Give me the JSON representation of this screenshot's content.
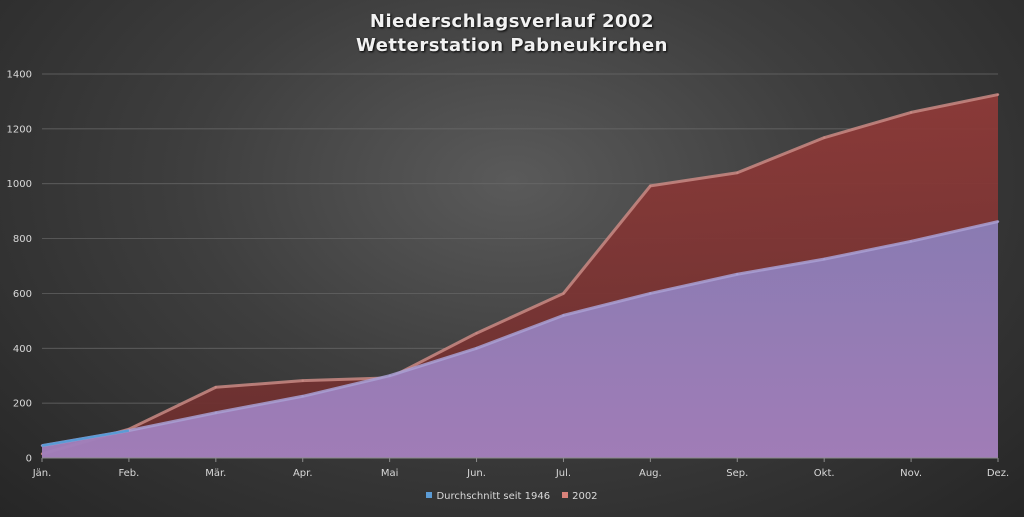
{
  "chart_data": {
    "type": "area",
    "title_lines": [
      "Niederschlagsverlauf 2002",
      "Wetterstation Pabneukirchen"
    ],
    "categories": [
      "Jän.",
      "Feb.",
      "Mär.",
      "Apr.",
      "Mai",
      "Jun.",
      "Jul.",
      "Aug.",
      "Sep.",
      "Okt.",
      "Nov.",
      "Dez."
    ],
    "yticks": [
      0,
      200,
      400,
      600,
      800,
      1000,
      1200,
      1400
    ],
    "ylim": [
      0,
      1400
    ],
    "grid": true,
    "legend_position": "bottom",
    "series": [
      {
        "name": "Durchschnitt seit 1946",
        "color": "#5b9bd5",
        "fill": "#8c7fb5",
        "values": [
          45,
          100,
          165,
          225,
          300,
          400,
          520,
          600,
          670,
          725,
          790,
          862
        ]
      },
      {
        "name": "2002",
        "color": "#d9827a",
        "fill": "#8b3c3a",
        "values": [
          15,
          105,
          258,
          282,
          292,
          455,
          600,
          992,
          1040,
          1168,
          1260,
          1325
        ]
      }
    ]
  }
}
